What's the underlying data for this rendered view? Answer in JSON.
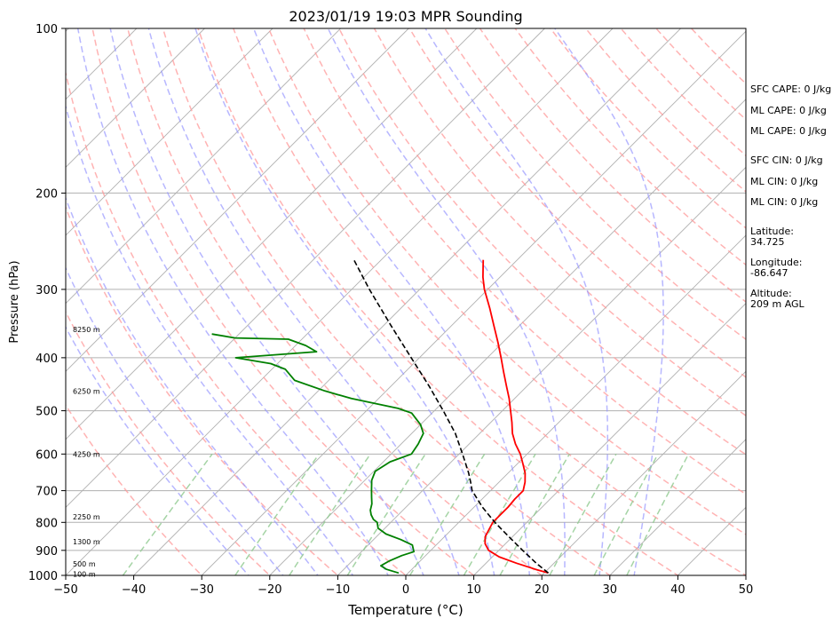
{
  "chart_data": {
    "type": "line",
    "title": "2023/01/19 19:03 MPR Sounding",
    "xlabel": "Temperature (°C)",
    "ylabel": "Pressure (hPa)",
    "xlim": [
      -50,
      50
    ],
    "ylim": [
      1000,
      100
    ],
    "y_scale": "log",
    "x_ticks": [
      -50,
      -40,
      -30,
      -20,
      -10,
      0,
      10,
      20,
      30,
      40,
      50
    ],
    "x_tick_labels": [
      "−50",
      "−40",
      "−30",
      "−20",
      "−10",
      "0",
      "10",
      "20",
      "30",
      "40",
      "50"
    ],
    "y_ticks": [
      1000,
      900,
      800,
      700,
      600,
      500,
      400,
      300,
      200,
      100
    ],
    "y_tick_labels": [
      "1000",
      "900",
      "800",
      "700",
      "600",
      "500",
      "400",
      "300",
      "200",
      "100"
    ],
    "grid": true,
    "skew": "skew-T log-p",
    "series": [
      {
        "role": "temperature",
        "color": "#ff0000",
        "style": "solid",
        "points": [
          [
            990,
            20.6
          ],
          [
            975,
            18.2
          ],
          [
            950,
            14.5
          ],
          [
            925,
            11.0
          ],
          [
            900,
            8.5
          ],
          [
            875,
            7.0
          ],
          [
            850,
            6.0
          ],
          [
            825,
            5.5
          ],
          [
            800,
            5.0
          ],
          [
            775,
            5.0
          ],
          [
            750,
            5.0
          ],
          [
            725,
            4.8
          ],
          [
            700,
            4.8
          ],
          [
            675,
            3.8
          ],
          [
            650,
            2.5
          ],
          [
            625,
            0.8
          ],
          [
            600,
            -1.0
          ],
          [
            575,
            -3.2
          ],
          [
            550,
            -5.2
          ],
          [
            525,
            -6.9
          ],
          [
            500,
            -8.8
          ],
          [
            475,
            -10.8
          ],
          [
            450,
            -13.1
          ],
          [
            425,
            -15.5
          ],
          [
            400,
            -18.0
          ],
          [
            375,
            -20.7
          ],
          [
            350,
            -23.7
          ],
          [
            325,
            -26.9
          ],
          [
            300,
            -30.5
          ],
          [
            285,
            -32.5
          ],
          [
            265,
            -35.0
          ]
        ]
      },
      {
        "role": "dewpoint",
        "color": "#008000",
        "style": "solid",
        "points": [
          [
            990,
            -1.4
          ],
          [
            975,
            -3.7
          ],
          [
            960,
            -5.1
          ],
          [
            940,
            -4.5
          ],
          [
            920,
            -3.5
          ],
          [
            905,
            -2.3
          ],
          [
            880,
            -3.5
          ],
          [
            860,
            -6.0
          ],
          [
            840,
            -9.0
          ],
          [
            820,
            -11.0
          ],
          [
            800,
            -12.0
          ],
          [
            790,
            -13.0
          ],
          [
            775,
            -14.0
          ],
          [
            760,
            -14.8
          ],
          [
            740,
            -15.5
          ],
          [
            720,
            -16.5
          ],
          [
            700,
            -17.5
          ],
          [
            670,
            -19.0
          ],
          [
            645,
            -19.8
          ],
          [
            620,
            -19.0
          ],
          [
            600,
            -17.0
          ],
          [
            575,
            -17.5
          ],
          [
            550,
            -18.3
          ],
          [
            530,
            -20.0
          ],
          [
            505,
            -23.0
          ],
          [
            495,
            -25.7
          ],
          [
            475,
            -34.0
          ],
          [
            460,
            -39.0
          ],
          [
            440,
            -45.0
          ],
          [
            420,
            -48.0
          ],
          [
            410,
            -51.0
          ],
          [
            400,
            -57.0
          ],
          [
            390,
            -46.0
          ],
          [
            380,
            -48.5
          ],
          [
            370,
            -52.0
          ],
          [
            368,
            -60.0
          ],
          [
            362,
            -64.0
          ]
        ]
      },
      {
        "role": "parcel",
        "color": "#000000",
        "style": "dashed",
        "points": [
          [
            990,
            20.6
          ],
          [
            950,
            17.4
          ],
          [
            900,
            13.5
          ],
          [
            850,
            9.5
          ],
          [
            800,
            5.3
          ],
          [
            750,
            1.2
          ],
          [
            700,
            -2.7
          ],
          [
            675,
            -4.2
          ],
          [
            650,
            -5.8
          ],
          [
            600,
            -9.5
          ],
          [
            550,
            -13.6
          ],
          [
            500,
            -18.7
          ],
          [
            450,
            -24.5
          ],
          [
            400,
            -31.2
          ],
          [
            350,
            -38.8
          ],
          [
            300,
            -47.4
          ],
          [
            265,
            -54.0
          ]
        ]
      }
    ],
    "dry_adiabats_theta_c": [
      -30,
      -20,
      -10,
      0,
      10,
      20,
      30,
      40,
      50,
      60,
      70,
      80,
      90,
      100,
      110,
      120,
      130,
      140,
      150,
      160,
      170,
      180
    ],
    "moist_adiabats_start_c": [
      -20,
      -15,
      -10,
      -5,
      0,
      5,
      10,
      15,
      20,
      25,
      30,
      35
    ],
    "mixing_ratio_lines_gkg": [
      0.1,
      0.5,
      1,
      2,
      4,
      7,
      10,
      16,
      24,
      32
    ],
    "height_labels": [
      {
        "text": "8250 m",
        "p": 355
      },
      {
        "text": "6250 m",
        "p": 460
      },
      {
        "text": "4250 m",
        "p": 600
      },
      {
        "text": "2250 m",
        "p": 782
      },
      {
        "text": "1300 m",
        "p": 868
      },
      {
        "text": "500 m",
        "p": 953
      },
      {
        "text": "100 m",
        "p": 995
      }
    ]
  },
  "stats": {
    "sfc_cape": "SFC CAPE: 0 J/kg",
    "ml_cape_1": "ML CAPE: 0 J/kg",
    "ml_cape_2": "ML CAPE: 0 J/kg",
    "sfc_cin": "SFC CIN: 0 J/kg",
    "ml_cin_1": "ML CIN: 0 J/kg",
    "ml_cin_2": "ML CIN: 0 J/kg",
    "latitude_label": "Latitude:",
    "latitude_value": "34.725",
    "longitude_label": "Longitude:",
    "longitude_value": "-86.647",
    "altitude_label": "Altitude:",
    "altitude_value": "209 m AGL"
  },
  "colors": {
    "temperature": "#ff0000",
    "dewpoint": "#008000",
    "parcel": "#000000",
    "dry_adiabat": "#ff9999",
    "moist_adiabat": "#9999ff",
    "mixing_ratio": "#8fc98f",
    "isotherm": "#b0b0b0",
    "isobar": "#b0b0b0"
  }
}
